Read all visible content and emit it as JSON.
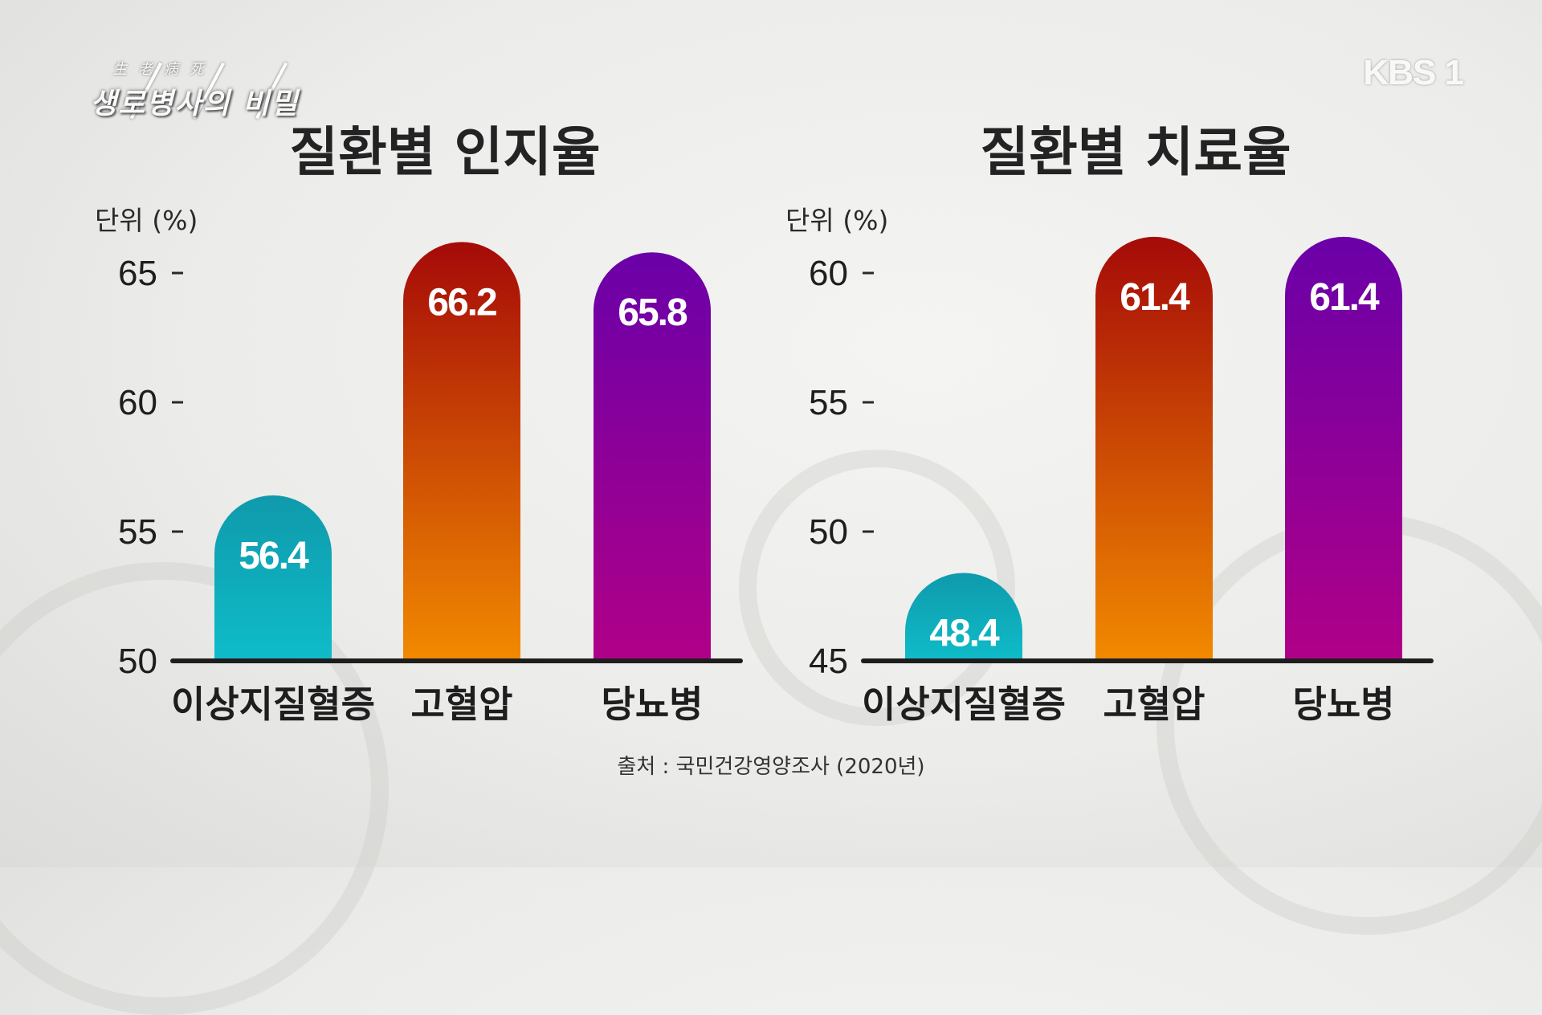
{
  "program": {
    "hanja": "生老病死",
    "title": "생로병사의 비밀",
    "channel_logo": "KBS 1"
  },
  "source": "출처 : 국민건강영양조사 (2020년)",
  "chart_data": [
    {
      "type": "bar",
      "title": "질환별 인지율",
      "unit_label": "단위 (%)",
      "categories": [
        "이상지질혈증",
        "고혈압",
        "당뇨병"
      ],
      "values": [
        56.4,
        66.2,
        65.8
      ],
      "value_labels": [
        "56.4",
        "66.2",
        "65.8"
      ],
      "ylim": [
        50,
        65
      ],
      "yticks": [
        50,
        55,
        60,
        65
      ],
      "colors": [
        [
          "#0fbcc9",
          "#0f9aac"
        ],
        [
          "#f28a00",
          "#a50a08"
        ],
        [
          "#b00088",
          "#6a00a8"
        ]
      ]
    },
    {
      "type": "bar",
      "title": "질환별 치료율",
      "unit_label": "단위 (%)",
      "categories": [
        "이상지질혈증",
        "고혈압",
        "당뇨병"
      ],
      "values": [
        48.4,
        61.4,
        61.4
      ],
      "value_labels": [
        "48.4",
        "61.4",
        "61.4"
      ],
      "ylim": [
        45,
        60
      ],
      "yticks": [
        45,
        50,
        55,
        60
      ],
      "colors": [
        [
          "#0fbcc9",
          "#0f9aac"
        ],
        [
          "#f28a00",
          "#a50a08"
        ],
        [
          "#b00088",
          "#6a00a8"
        ]
      ]
    }
  ]
}
